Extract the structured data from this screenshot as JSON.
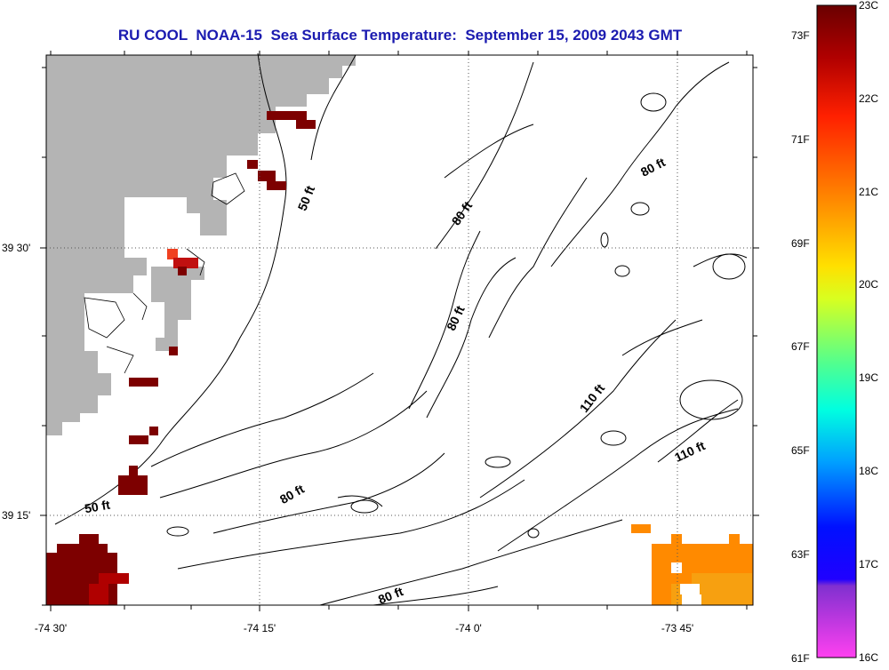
{
  "title": "RU COOL  NOAA-15  Sea Surface Temperature:  September 15, 2009 2043 GMT",
  "lon_labels": [
    "-74 30'",
    "-74 15'",
    "-74 0'",
    "-73 45'"
  ],
  "lat_labels": [
    "39 30'",
    "39 15'"
  ],
  "contours": [
    "50 ft",
    "50 ft",
    "80 ft",
    "80 ft",
    "80 ft",
    "80 ft",
    "80 ft",
    "110 ft",
    "110 ft"
  ],
  "colorbar": {
    "fahrenheit": [
      "73F",
      "71F",
      "69F",
      "67F",
      "65F",
      "63F",
      "61F"
    ],
    "celsius": [
      "23C",
      "22C",
      "21C",
      "20C",
      "19C",
      "18C",
      "17C",
      "16C"
    ],
    "colors": [
      "#7a0000",
      "#c00000",
      "#ff1a00",
      "#ff8000",
      "#ffd000",
      "#f0ff00",
      "#90ff40",
      "#30ffb0",
      "#00e0ff",
      "#0080ff",
      "#0020ff",
      "#8020ff",
      "#ff40ff"
    ]
  },
  "land_color": "#b4b4b4",
  "sst_colors": {
    "hot": "#7d0000",
    "red": "#b00000",
    "orange": "#ff8a00",
    "amber": "#f7a010",
    "red_orange": "#f04020"
  }
}
